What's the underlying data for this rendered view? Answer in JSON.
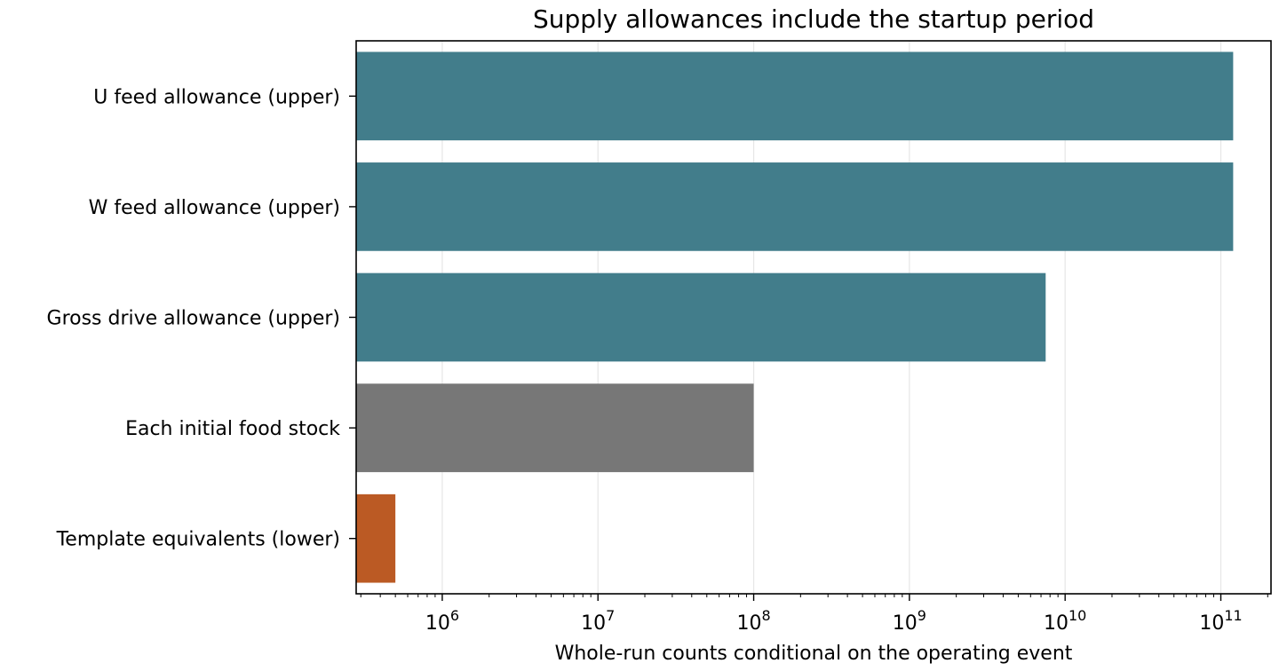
{
  "chart_data": {
    "type": "bar",
    "orientation": "horizontal",
    "title": "Supply allowances include the startup period",
    "xlabel": "Whole-run counts conditional on the operating event",
    "ylabel": "",
    "xscale": "log",
    "xlim": [
      280000,
      210000000000
    ],
    "grid": "x",
    "categories": [
      "U feed allowance (upper)",
      "W feed allowance (upper)",
      "Gross drive allowance (upper)",
      "Each initial food stock",
      "Template equivalents (lower)"
    ],
    "values": [
      120000000000,
      120000000000,
      7500000000,
      100000000,
      500000
    ],
    "colors": [
      "#427d8b",
      "#427d8b",
      "#427d8b",
      "#777777",
      "#bb5a24"
    ],
    "x_ticks": [
      {
        "base": "10",
        "exp": "6",
        "value": 1000000
      },
      {
        "base": "10",
        "exp": "7",
        "value": 10000000
      },
      {
        "base": "10",
        "exp": "8",
        "value": 100000000
      },
      {
        "base": "10",
        "exp": "9",
        "value": 1000000000
      },
      {
        "base": "10",
        "exp": "10",
        "value": 10000000000
      },
      {
        "base": "10",
        "exp": "11",
        "value": 100000000000
      }
    ]
  }
}
